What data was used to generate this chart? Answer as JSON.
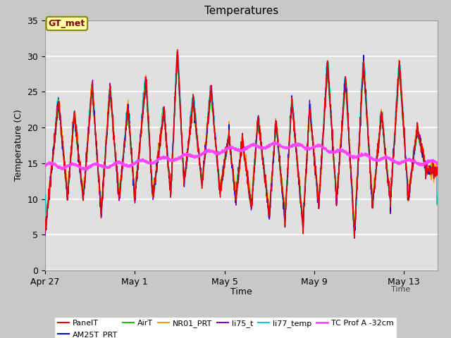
{
  "title": "Temperatures",
  "xlabel": "Time",
  "ylabel": "Temperature (C)",
  "ylim": [
    0,
    35
  ],
  "yticks": [
    0,
    5,
    10,
    15,
    20,
    25,
    30,
    35
  ],
  "xlim_days": [
    0,
    17.5
  ],
  "x_tick_labels": [
    "Apr 27",
    "May 1",
    "May 5",
    "May 9",
    "May 13"
  ],
  "x_tick_positions": [
    0,
    4,
    8,
    12,
    16
  ],
  "annotation_text": "GT_met",
  "background_color": "#e0e0e0",
  "grid_color": "#ffffff",
  "figsize": [
    6.4,
    4.8
  ],
  "dpi": 100,
  "series": {
    "PanelT": {
      "color": "#ee0000",
      "lw": 1.0
    },
    "AM25T_PRT": {
      "color": "#0000dd",
      "lw": 1.0
    },
    "AirT": {
      "color": "#00cc00",
      "lw": 1.0
    },
    "NR01_PRT": {
      "color": "#ff9900",
      "lw": 1.0
    },
    "li75_t": {
      "color": "#8800cc",
      "lw": 1.0
    },
    "li77_temp": {
      "color": "#00cccc",
      "lw": 1.0
    },
    "TC Prof A -32cm": {
      "color": "#ff44ff",
      "lw": 2.0
    }
  },
  "legend_items": [
    {
      "label": "PanelT",
      "color": "#ee0000"
    },
    {
      "label": "AM25T_PRT",
      "color": "#0000dd"
    },
    {
      "label": "AirT",
      "color": "#00cc00"
    },
    {
      "label": "NR01_PRT",
      "color": "#ff9900"
    },
    {
      "label": "li75_t",
      "color": "#8800cc"
    },
    {
      "label": "li77_temp",
      "color": "#00cccc"
    },
    {
      "label": "TC Prof A -32cm",
      "color": "#ff44ff"
    }
  ],
  "peak_days": [
    0.6,
    1.3,
    2.1,
    2.9,
    3.7,
    4.5,
    5.3,
    5.9,
    6.6,
    7.4,
    8.2,
    8.8,
    9.5,
    10.3,
    11.0,
    11.8,
    12.6,
    13.4,
    14.2,
    15.0,
    15.8,
    16.6
  ],
  "peak_vals": [
    24,
    22,
    26,
    25.5,
    23,
    27,
    22.5,
    31,
    24,
    25.5,
    19,
    18.5,
    21.5,
    21,
    24,
    23,
    29,
    27,
    29.5,
    22,
    29,
    20
  ],
  "trough_days": [
    0.0,
    1.0,
    1.7,
    2.5,
    3.3,
    4.0,
    4.8,
    5.6,
    6.2,
    7.0,
    7.8,
    8.5,
    9.2,
    10.0,
    10.7,
    11.5,
    12.2,
    13.0,
    13.8,
    14.6,
    15.4,
    16.2,
    17.0
  ],
  "trough_vals": [
    5,
    10,
    10,
    8,
    10,
    10,
    10,
    10.5,
    12,
    12,
    11,
    10,
    8.5,
    7.5,
    7,
    6,
    9,
    9.5,
    5,
    9,
    9.5,
    10,
    14
  ],
  "tc_prof_x": [
    0,
    2,
    4,
    6,
    8,
    10,
    12,
    14,
    16,
    17.5
  ],
  "tc_prof_y": [
    14.7,
    14.5,
    15.0,
    15.8,
    16.8,
    17.5,
    17.3,
    16.0,
    15.2,
    15.0
  ]
}
